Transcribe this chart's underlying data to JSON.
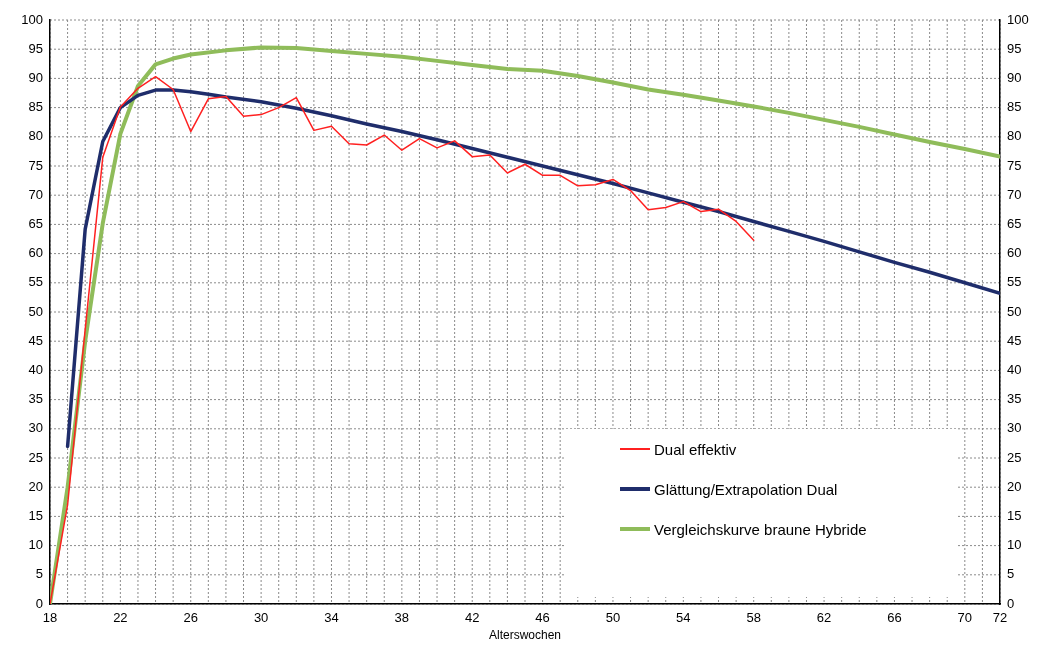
{
  "chart_data": {
    "type": "line",
    "xlabel": "Alterswochen",
    "legend": "bottom right",
    "grid": true,
    "marker": "none",
    "line_style": "solid",
    "xlim": [
      18,
      72
    ],
    "xticks": [
      18,
      {
        "value": 19,
        "label": null
      },
      {
        "value": 20,
        "label": null
      },
      {
        "value": 21,
        "label": null
      },
      22,
      {
        "value": 23,
        "label": null
      },
      {
        "value": 24,
        "label": null
      },
      {
        "value": 25,
        "label": null
      },
      26,
      {
        "value": 27,
        "label": null
      },
      {
        "value": 28,
        "label": null
      },
      {
        "value": 29,
        "label": null
      },
      30,
      {
        "value": 31,
        "label": null
      },
      {
        "value": 32,
        "label": null
      },
      {
        "value": 33,
        "label": null
      },
      34,
      {
        "value": 35,
        "label": null
      },
      {
        "value": 36,
        "label": null
      },
      {
        "value": 37,
        "label": null
      },
      38,
      {
        "value": 39,
        "label": null
      },
      {
        "value": 40,
        "label": null
      },
      {
        "value": 41,
        "label": null
      },
      42,
      {
        "value": 43,
        "label": null
      },
      {
        "value": 44,
        "label": null
      },
      {
        "value": 45,
        "label": null
      },
      46,
      {
        "value": 47,
        "label": null
      },
      {
        "value": 48,
        "label": null
      },
      {
        "value": 49,
        "label": null
      },
      50,
      {
        "value": 51,
        "label": null
      },
      {
        "value": 52,
        "label": null
      },
      {
        "value": 53,
        "label": null
      },
      54,
      {
        "value": 55,
        "label": null
      },
      {
        "value": 56,
        "label": null
      },
      {
        "value": 57,
        "label": null
      },
      58,
      {
        "value": 59,
        "label": null
      },
      {
        "value": 60,
        "label": null
      },
      {
        "value": 61,
        "label": null
      },
      62,
      {
        "value": 63,
        "label": null
      },
      {
        "value": 64,
        "label": null
      },
      {
        "value": 65,
        "label": null
      },
      66,
      {
        "value": 67,
        "label": null
      },
      {
        "value": 68,
        "label": null
      },
      {
        "value": 69,
        "label": null
      },
      70,
      {
        "value": 71,
        "label": null
      },
      72
    ],
    "ylim": [
      0,
      100
    ],
    "yticks": [
      0,
      5,
      10,
      15,
      20,
      25,
      30,
      35,
      40,
      45,
      50,
      55,
      60,
      65,
      70,
      75,
      80,
      85,
      90,
      95,
      100
    ],
    "y2lim": [
      0,
      100
    ],
    "y2ticks": [
      0,
      5,
      10,
      15,
      20,
      25,
      30,
      35,
      40,
      45,
      50,
      55,
      60,
      65,
      70,
      75,
      80,
      85,
      90,
      95,
      100
    ],
    "series": [
      {
        "name": "Dual effektiv",
        "color": "#ff2020",
        "x": [
          18,
          19,
          20,
          21,
          22,
          23,
          24,
          25,
          26,
          27,
          28,
          29,
          30,
          31,
          32,
          33,
          34,
          35,
          36,
          37,
          38,
          39,
          40,
          41,
          42,
          43,
          44,
          45,
          46,
          47,
          48,
          49,
          50,
          51,
          52,
          53,
          54,
          55,
          56,
          57,
          58
        ],
        "values": [
          0,
          17,
          47,
          76.5,
          85.1,
          88.3,
          90.3,
          88.1,
          80.9,
          86.5,
          86.9,
          83.5,
          83.8,
          85,
          86.7,
          81.1,
          81.8,
          78.8,
          78.6,
          80.3,
          77.7,
          79.7,
          78.1,
          79.3,
          76.6,
          76.9,
          73.8,
          75.3,
          73.4,
          73.4,
          71.6,
          71.8,
          72.7,
          70.8,
          67.5,
          67.9,
          68.9,
          67.2,
          67.6,
          65.5,
          62.3
        ]
      },
      {
        "name": "Glättung/Extrapolation Dual",
        "color": "#1f2d6b",
        "x": [
          19,
          20,
          21,
          22,
          23,
          24,
          25,
          26,
          27,
          28,
          30,
          32,
          34,
          36,
          38,
          40,
          42,
          44,
          46,
          48,
          50,
          52,
          54,
          56,
          58,
          60,
          62,
          64,
          66,
          68,
          70,
          72
        ],
        "values": [
          27,
          64.2,
          79.2,
          85,
          87.1,
          88,
          88,
          87.7,
          87.3,
          86.8,
          86,
          84.9,
          83.6,
          82.2,
          80.9,
          79.5,
          78,
          76.5,
          75,
          73.5,
          72,
          70.4,
          68.8,
          67.2,
          65.5,
          63.8,
          62.1,
          60.3,
          58.5,
          56.8,
          55,
          53.2
        ]
      },
      {
        "name": "Vergleichskurve braune Hybride",
        "color": "#8fbc5a",
        "x": [
          18,
          19,
          20,
          21,
          22,
          23,
          24,
          25,
          26,
          28,
          30,
          32,
          34,
          36,
          38,
          40,
          42,
          44,
          46,
          48,
          50,
          52,
          54,
          56,
          58,
          60,
          62,
          64,
          66,
          68,
          70,
          72
        ],
        "values": [
          0,
          20,
          45,
          65.2,
          80.5,
          88.7,
          92.4,
          93.4,
          94.1,
          94.8,
          95.3,
          95.2,
          94.7,
          94.2,
          93.7,
          93,
          92.3,
          91.6,
          91.3,
          90.4,
          89.3,
          88.1,
          87.2,
          86.2,
          85.2,
          84.1,
          82.9,
          81.7,
          80.4,
          79.1,
          77.9,
          76.6
        ]
      }
    ]
  }
}
